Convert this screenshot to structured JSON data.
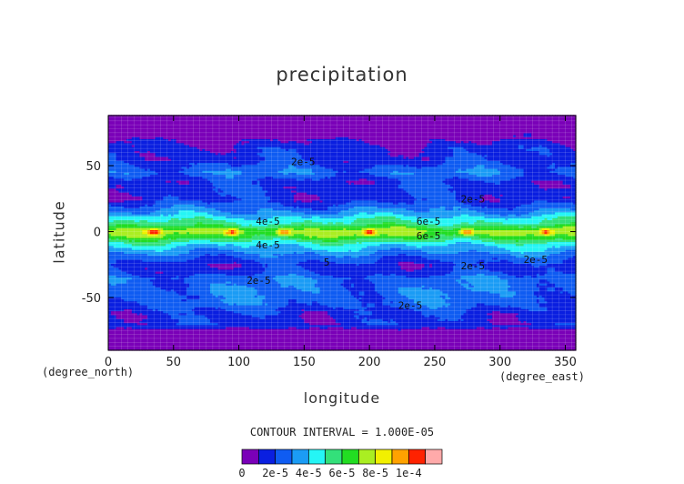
{
  "chart_data": {
    "type": "heatmap",
    "title": "precipitation",
    "xlabel": "longitude",
    "ylabel": "latitude",
    "x_unit": "(degree_east)",
    "y_unit": "(degree_north)",
    "xlim": [
      0,
      358
    ],
    "ylim": [
      -90,
      88
    ],
    "x_ticks": [
      0,
      50,
      100,
      150,
      200,
      250,
      300,
      350
    ],
    "y_ticks": [
      -50,
      0,
      50
    ],
    "contour_interval_text": "CONTOUR INTERVAL = 1.000E-05",
    "colorbar": {
      "levels": [
        0,
        1e-05,
        2e-05,
        3e-05,
        4e-05,
        5e-05,
        6e-05,
        7e-05,
        8e-05,
        9e-05,
        0.0001,
        0.00011
      ],
      "tick_labels": [
        "0",
        "2e-5",
        "4e-5",
        "6e-5",
        "8e-5",
        "1e-4"
      ],
      "colors": [
        "#7a00b8",
        "#0a1fe0",
        "#0f5cf2",
        "#1b9cf5",
        "#25f5f5",
        "#33e07a",
        "#22dd22",
        "#aaee22",
        "#f2f000",
        "#ffa200",
        "#ff2200",
        "#ffaaaa"
      ]
    },
    "zonal_mean_profile": {
      "lat": [
        -90,
        -75,
        -71,
        -62,
        -55,
        -45,
        -35,
        -30,
        -25,
        -20,
        -14,
        -10,
        -6,
        -3,
        0,
        3,
        6,
        10,
        14,
        20,
        25,
        30,
        38,
        45,
        54,
        63,
        70,
        80,
        88
      ],
      "value": [
        5e-06,
        5e-06,
        1.5e-05,
        1.6e-05,
        2.4e-05,
        2.7e-05,
        2.6e-05,
        1.7e-05,
        1.5e-05,
        2.2e-05,
        3.4e-05,
        4.2e-05,
        5.6e-05,
        6.6e-05,
        7.4e-05,
        6.6e-05,
        5.3e-05,
        4.6e-05,
        3.4e-05,
        2.3e-05,
        1.5e-05,
        1.7e-05,
        1.6e-05,
        2.8e-05,
        1.6e-05,
        1.5e-05,
        8e-06,
        5e-06,
        5e-06
      ]
    },
    "contour_labels": [
      {
        "text": "2e-5",
        "lon": 140,
        "lat": 53
      },
      {
        "text": "2e-5",
        "lon": 270,
        "lat": 25
      },
      {
        "text": "4e-5",
        "lon": 113,
        "lat": 8
      },
      {
        "text": "6e-5",
        "lon": 236,
        "lat": 8
      },
      {
        "text": "4e-5",
        "lon": 113,
        "lat": -10
      },
      {
        "text": "6e-5",
        "lon": 236,
        "lat": -3
      },
      {
        "text": "5",
        "lon": 165,
        "lat": -23
      },
      {
        "text": "2e-5",
        "lon": 270,
        "lat": -26
      },
      {
        "text": "2e-5",
        "lon": 318,
        "lat": -21
      },
      {
        "text": "2e-5",
        "lon": 106,
        "lat": -37
      },
      {
        "text": "2e-5",
        "lon": 222,
        "lat": -56
      }
    ],
    "hotspots": [
      {
        "lon": 35,
        "lat": 0
      },
      {
        "lon": 95,
        "lat": 0
      },
      {
        "lon": 135,
        "lat": 0
      },
      {
        "lon": 200,
        "lat": 0
      },
      {
        "lon": 275,
        "lat": 0
      },
      {
        "lon": 335,
        "lat": 0
      }
    ],
    "grid": true,
    "legend": "bottom-center"
  }
}
